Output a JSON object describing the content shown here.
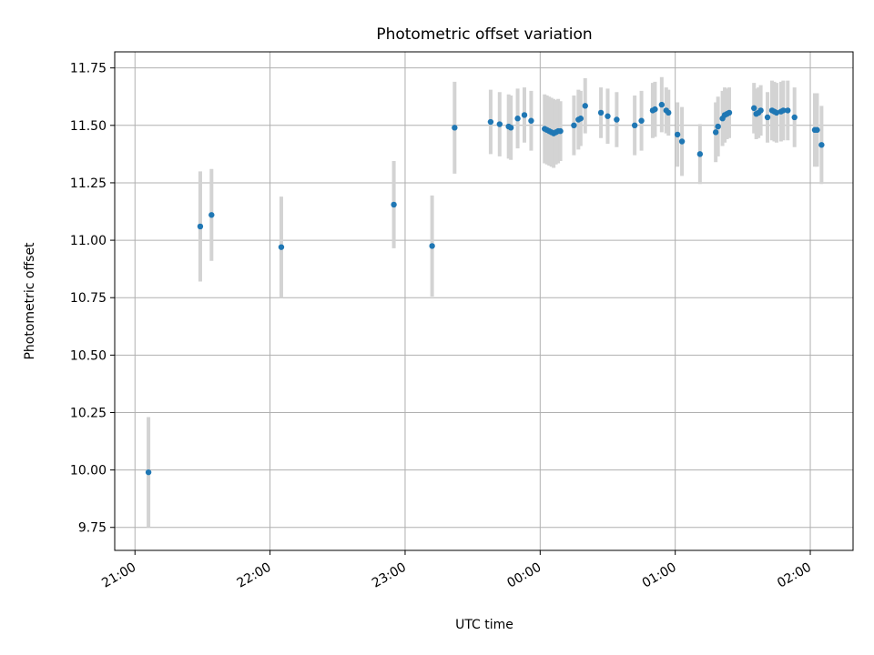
{
  "chart_data": {
    "type": "scatter",
    "title": "Photometric offset variation",
    "xlabel": "UTC time",
    "ylabel": "Photometric offset",
    "xlim": [
      "20:51",
      "02:19"
    ],
    "ylim": [
      9.65,
      11.82
    ],
    "x_ticks": [
      "21:00",
      "22:00",
      "23:00",
      "00:00",
      "01:00",
      "02:00"
    ],
    "y_ticks": [
      "9.75",
      "10.00",
      "10.25",
      "10.50",
      "10.75",
      "11.00",
      "11.25",
      "11.50",
      "11.75"
    ],
    "grid": true,
    "colors": {
      "marker": "#1f77b4",
      "errorbar": "#d3d3d3",
      "grid": "#b0b0b0"
    },
    "points": [
      {
        "x": "21:06",
        "y": 9.99,
        "err": 0.24
      },
      {
        "x": "21:29",
        "y": 11.06,
        "err": 0.24
      },
      {
        "x": "21:34",
        "y": 11.11,
        "err": 0.2
      },
      {
        "x": "22:05",
        "y": 10.97,
        "err": 0.22
      },
      {
        "x": "22:55",
        "y": 11.155,
        "err": 0.19
      },
      {
        "x": "23:12",
        "y": 10.975,
        "err": 0.22
      },
      {
        "x": "23:22",
        "y": 11.49,
        "err": 0.2
      },
      {
        "x": "23:38",
        "y": 11.515,
        "err": 0.14
      },
      {
        "x": "23:42",
        "y": 11.505,
        "err": 0.14
      },
      {
        "x": "23:46",
        "y": 11.495,
        "err": 0.14
      },
      {
        "x": "23:47",
        "y": 11.49,
        "err": 0.14
      },
      {
        "x": "23:50",
        "y": 11.53,
        "err": 0.13
      },
      {
        "x": "23:53",
        "y": 11.545,
        "err": 0.12
      },
      {
        "x": "23:56",
        "y": 11.52,
        "err": 0.13
      },
      {
        "x": "00:02",
        "y": 11.485,
        "err": 0.15
      },
      {
        "x": "00:03",
        "y": 11.48,
        "err": 0.15
      },
      {
        "x": "00:04",
        "y": 11.475,
        "err": 0.15
      },
      {
        "x": "00:05",
        "y": 11.47,
        "err": 0.15
      },
      {
        "x": "00:06",
        "y": 11.465,
        "err": 0.15
      },
      {
        "x": "00:07",
        "y": 11.47,
        "err": 0.14
      },
      {
        "x": "00:08",
        "y": 11.475,
        "err": 0.14
      },
      {
        "x": "00:09",
        "y": 11.475,
        "err": 0.13
      },
      {
        "x": "00:15",
        "y": 11.5,
        "err": 0.13
      },
      {
        "x": "00:17",
        "y": 11.525,
        "err": 0.13
      },
      {
        "x": "00:18",
        "y": 11.53,
        "err": 0.12
      },
      {
        "x": "00:20",
        "y": 11.585,
        "err": 0.12
      },
      {
        "x": "00:27",
        "y": 11.555,
        "err": 0.11
      },
      {
        "x": "00:30",
        "y": 11.54,
        "err": 0.12
      },
      {
        "x": "00:34",
        "y": 11.525,
        "err": 0.12
      },
      {
        "x": "00:42",
        "y": 11.5,
        "err": 0.13
      },
      {
        "x": "00:45",
        "y": 11.52,
        "err": 0.13
      },
      {
        "x": "00:50",
        "y": 11.565,
        "err": 0.12
      },
      {
        "x": "00:51",
        "y": 11.57,
        "err": 0.12
      },
      {
        "x": "00:54",
        "y": 11.59,
        "err": 0.12
      },
      {
        "x": "00:56",
        "y": 11.565,
        "err": 0.1
      },
      {
        "x": "00:57",
        "y": 11.555,
        "err": 0.1
      },
      {
        "x": "01:01",
        "y": 11.46,
        "err": 0.14
      },
      {
        "x": "01:03",
        "y": 11.43,
        "err": 0.15
      },
      {
        "x": "01:11",
        "y": 11.375,
        "err": 0.13
      },
      {
        "x": "01:18",
        "y": 11.47,
        "err": 0.13
      },
      {
        "x": "01:19",
        "y": 11.495,
        "err": 0.13
      },
      {
        "x": "01:21",
        "y": 11.53,
        "err": 0.12
      },
      {
        "x": "01:22",
        "y": 11.545,
        "err": 0.12
      },
      {
        "x": "01:23",
        "y": 11.55,
        "err": 0.11
      },
      {
        "x": "01:24",
        "y": 11.555,
        "err": 0.11
      },
      {
        "x": "01:35",
        "y": 11.575,
        "err": 0.11
      },
      {
        "x": "01:36",
        "y": 11.55,
        "err": 0.11
      },
      {
        "x": "01:37",
        "y": 11.555,
        "err": 0.11
      },
      {
        "x": "01:38",
        "y": 11.565,
        "err": 0.11
      },
      {
        "x": "01:41",
        "y": 11.535,
        "err": 0.11
      },
      {
        "x": "01:43",
        "y": 11.565,
        "err": 0.13
      },
      {
        "x": "01:44",
        "y": 11.56,
        "err": 0.13
      },
      {
        "x": "01:45",
        "y": 11.555,
        "err": 0.13
      },
      {
        "x": "01:47",
        "y": 11.56,
        "err": 0.13
      },
      {
        "x": "01:48",
        "y": 11.565,
        "err": 0.13
      },
      {
        "x": "01:50",
        "y": 11.565,
        "err": 0.13
      },
      {
        "x": "01:53",
        "y": 11.535,
        "err": 0.13
      },
      {
        "x": "02:02",
        "y": 11.48,
        "err": 0.16
      },
      {
        "x": "02:03",
        "y": 11.48,
        "err": 0.16
      },
      {
        "x": "02:05",
        "y": 11.415,
        "err": 0.17
      }
    ]
  }
}
